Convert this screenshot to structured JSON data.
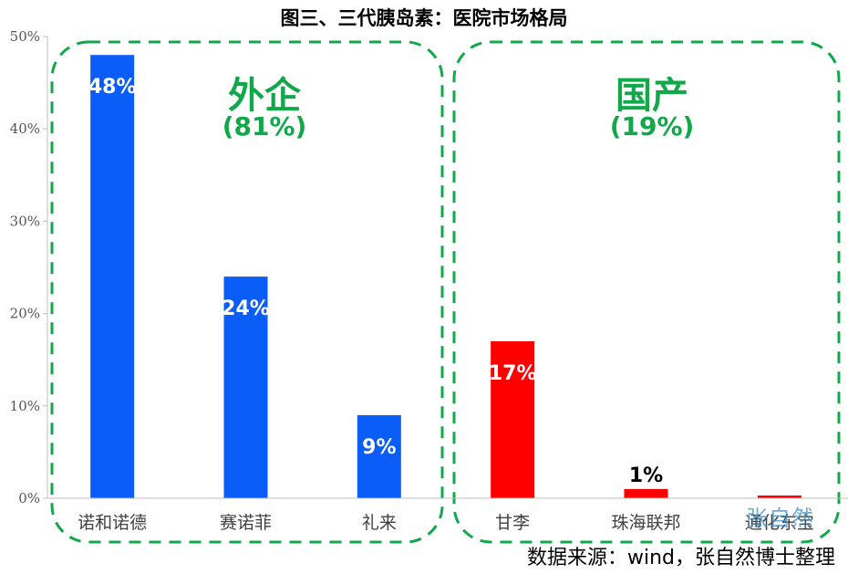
{
  "title": "图三、三代胰岛素：医院市场格局",
  "source": "数据来源：wind，张自然博士整理",
  "watermark": "张自然",
  "groups": {
    "foreign": {
      "name": "外企",
      "share": "(81%)"
    },
    "domestic": {
      "name": "国产",
      "share": "(19%)"
    }
  },
  "colors": {
    "foreign_bar": "#0a5ef7",
    "domestic_bar": "#ff0000",
    "group_box": "#11a84a",
    "axis": "#bfbfbf"
  },
  "chart_data": {
    "type": "bar",
    "categories": [
      "诺和诺德",
      "赛诺菲",
      "礼来",
      "甘李",
      "珠海联邦",
      "通化东宝"
    ],
    "values": [
      48,
      24,
      9,
      17,
      1,
      0.3
    ],
    "data_labels": [
      "48%",
      "24%",
      "9%",
      "17%",
      "1%",
      ""
    ],
    "bar_colors": [
      "#0a5ef7",
      "#0a5ef7",
      "#0a5ef7",
      "#ff0000",
      "#ff0000",
      "#ff0000"
    ],
    "ylim": [
      0,
      50
    ],
    "y_ticks": [
      0,
      10,
      20,
      30,
      40,
      50
    ],
    "y_tick_labels": [
      "0%",
      "10%",
      "20%",
      "30%",
      "40%",
      "50%"
    ],
    "grid": false,
    "legend": "none"
  }
}
